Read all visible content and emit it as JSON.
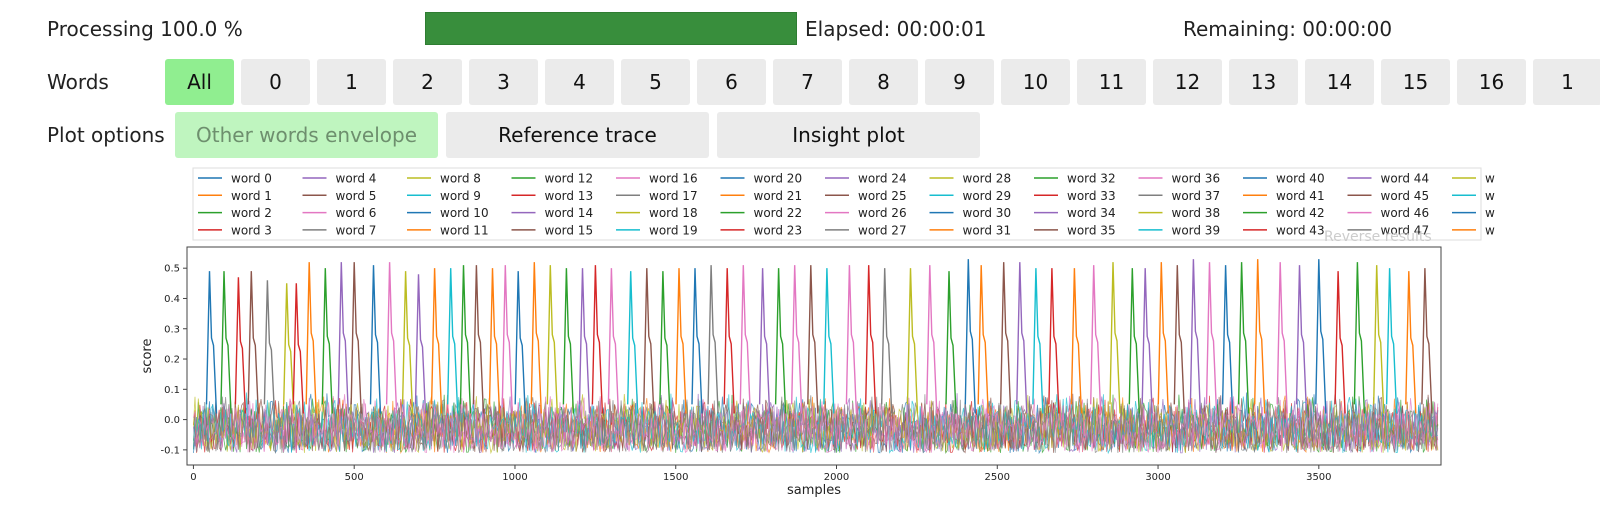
{
  "progress": {
    "label": "Processing 100.0 %",
    "fraction": 1.0,
    "elapsed": "Elapsed: 00:00:01",
    "remaining": "Remaining: 00:00:00",
    "fill_color": "#388e3c"
  },
  "words": {
    "label": "Words",
    "buttons": [
      "All",
      "0",
      "1",
      "2",
      "3",
      "4",
      "5",
      "6",
      "7",
      "8",
      "9",
      "10",
      "11",
      "12",
      "13",
      "14",
      "15",
      "16",
      "1"
    ],
    "active": "All",
    "active_color": "#90ee90"
  },
  "plot_options": {
    "label": "Plot options",
    "buttons": [
      "Other words envelope",
      "Reference trace",
      "Insight plot"
    ],
    "active": "Other words envelope"
  },
  "reverse_results_label": "Reverse results",
  "chart_data": {
    "type": "line",
    "xlabel": "samples",
    "ylabel": "score",
    "xlim": [
      -20,
      3880
    ],
    "ylim": [
      -0.15,
      0.57
    ],
    "xticks": [
      0,
      500,
      1000,
      1500,
      2000,
      2500,
      3000,
      3500
    ],
    "yticks": [
      -0.1,
      0.0,
      0.1,
      0.2,
      0.3,
      0.4,
      0.5
    ],
    "legend_position": "top",
    "legend": [
      "word 0",
      "word 1",
      "word 2",
      "word 3",
      "word 4",
      "word 5",
      "word 6",
      "word 7",
      "word 8",
      "word 9",
      "word 10",
      "word 11",
      "word 12",
      "word 13",
      "word 14",
      "word 15",
      "word 16",
      "word 17",
      "word 18",
      "word 19",
      "word 20",
      "word 21",
      "word 22",
      "word 23",
      "word 24",
      "word 25",
      "word 26",
      "word 27",
      "word 28",
      "word 29",
      "word 30",
      "word 31",
      "word 32",
      "word 33",
      "word 34",
      "word 35",
      "word 36",
      "word 37",
      "word 38",
      "word 39",
      "word 40",
      "word 41",
      "word 42",
      "word 43",
      "word 44",
      "word 45",
      "word 46",
      "word 47",
      "w",
      "w",
      "w",
      "w"
    ],
    "colors": [
      "#1f77b4",
      "#ff7f0e",
      "#2ca02c",
      "#d62728",
      "#9467bd",
      "#8c564b",
      "#e377c2",
      "#7f7f7f",
      "#bcbd22",
      "#17becf"
    ],
    "noise_band": [
      -0.1,
      0.1
    ],
    "peaks": [
      {
        "x": 50,
        "y": 0.49,
        "series": 0
      },
      {
        "x": 95,
        "y": 0.49,
        "series": 2
      },
      {
        "x": 140,
        "y": 0.47,
        "series": 3
      },
      {
        "x": 180,
        "y": 0.49,
        "series": 5
      },
      {
        "x": 230,
        "y": 0.46,
        "series": 7
      },
      {
        "x": 290,
        "y": 0.45,
        "series": 8
      },
      {
        "x": 320,
        "y": 0.45,
        "series": 3
      },
      {
        "x": 360,
        "y": 0.52,
        "series": 1
      },
      {
        "x": 410,
        "y": 0.5,
        "series": 2
      },
      {
        "x": 460,
        "y": 0.52,
        "series": 4
      },
      {
        "x": 500,
        "y": 0.52,
        "series": 5
      },
      {
        "x": 560,
        "y": 0.51,
        "series": 0
      },
      {
        "x": 610,
        "y": 0.52,
        "series": 6
      },
      {
        "x": 660,
        "y": 0.49,
        "series": 8
      },
      {
        "x": 700,
        "y": 0.48,
        "series": 4
      },
      {
        "x": 750,
        "y": 0.5,
        "series": 1
      },
      {
        "x": 800,
        "y": 0.5,
        "series": 9
      },
      {
        "x": 840,
        "y": 0.51,
        "series": 2
      },
      {
        "x": 880,
        "y": 0.51,
        "series": 5
      },
      {
        "x": 930,
        "y": 0.5,
        "series": 1
      },
      {
        "x": 970,
        "y": 0.51,
        "series": 6
      },
      {
        "x": 1010,
        "y": 0.49,
        "series": 0
      },
      {
        "x": 1060,
        "y": 0.52,
        "series": 1
      },
      {
        "x": 1110,
        "y": 0.51,
        "series": 8
      },
      {
        "x": 1160,
        "y": 0.5,
        "series": 2
      },
      {
        "x": 1210,
        "y": 0.5,
        "series": 4
      },
      {
        "x": 1250,
        "y": 0.51,
        "series": 3
      },
      {
        "x": 1300,
        "y": 0.5,
        "series": 6
      },
      {
        "x": 1360,
        "y": 0.49,
        "series": 9
      },
      {
        "x": 1410,
        "y": 0.5,
        "series": 5
      },
      {
        "x": 1460,
        "y": 0.49,
        "series": 2
      },
      {
        "x": 1510,
        "y": 0.5,
        "series": 1
      },
      {
        "x": 1560,
        "y": 0.5,
        "series": 0
      },
      {
        "x": 1610,
        "y": 0.51,
        "series": 7
      },
      {
        "x": 1660,
        "y": 0.5,
        "series": 3
      },
      {
        "x": 1710,
        "y": 0.51,
        "series": 6
      },
      {
        "x": 1770,
        "y": 0.5,
        "series": 4
      },
      {
        "x": 1820,
        "y": 0.5,
        "series": 2
      },
      {
        "x": 1870,
        "y": 0.51,
        "series": 6
      },
      {
        "x": 1920,
        "y": 0.51,
        "series": 5
      },
      {
        "x": 1970,
        "y": 0.5,
        "series": 9
      },
      {
        "x": 2040,
        "y": 0.51,
        "series": 6
      },
      {
        "x": 2100,
        "y": 0.51,
        "series": 3
      },
      {
        "x": 2150,
        "y": 0.5,
        "series": 7
      },
      {
        "x": 2230,
        "y": 0.5,
        "series": 8
      },
      {
        "x": 2290,
        "y": 0.51,
        "series": 6
      },
      {
        "x": 2350,
        "y": 0.49,
        "series": 2
      },
      {
        "x": 2410,
        "y": 0.53,
        "series": 0
      },
      {
        "x": 2450,
        "y": 0.51,
        "series": 1
      },
      {
        "x": 2520,
        "y": 0.52,
        "series": 5
      },
      {
        "x": 2570,
        "y": 0.52,
        "series": 4
      },
      {
        "x": 2620,
        "y": 0.5,
        "series": 9
      },
      {
        "x": 2670,
        "y": 0.5,
        "series": 3
      },
      {
        "x": 2740,
        "y": 0.5,
        "series": 1
      },
      {
        "x": 2800,
        "y": 0.51,
        "series": 6
      },
      {
        "x": 2860,
        "y": 0.52,
        "series": 8
      },
      {
        "x": 2920,
        "y": 0.5,
        "series": 2
      },
      {
        "x": 2960,
        "y": 0.5,
        "series": 4
      },
      {
        "x": 3010,
        "y": 0.52,
        "series": 1
      },
      {
        "x": 3060,
        "y": 0.51,
        "series": 5
      },
      {
        "x": 3110,
        "y": 0.53,
        "series": 4
      },
      {
        "x": 3160,
        "y": 0.52,
        "series": 6
      },
      {
        "x": 3210,
        "y": 0.51,
        "series": 0
      },
      {
        "x": 3260,
        "y": 0.52,
        "series": 2
      },
      {
        "x": 3310,
        "y": 0.53,
        "series": 1
      },
      {
        "x": 3380,
        "y": 0.52,
        "series": 6
      },
      {
        "x": 3440,
        "y": 0.51,
        "series": 4
      },
      {
        "x": 3500,
        "y": 0.53,
        "series": 0
      },
      {
        "x": 3560,
        "y": 0.49,
        "series": 3
      },
      {
        "x": 3620,
        "y": 0.52,
        "series": 2
      },
      {
        "x": 3680,
        "y": 0.51,
        "series": 8
      },
      {
        "x": 3720,
        "y": 0.5,
        "series": 9
      },
      {
        "x": 3780,
        "y": 0.49,
        "series": 1
      },
      {
        "x": 3830,
        "y": 0.5,
        "series": 5
      }
    ]
  }
}
